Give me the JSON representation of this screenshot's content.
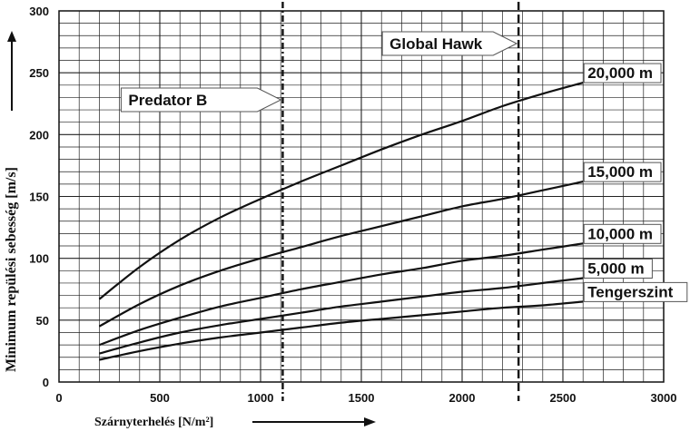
{
  "chart_data": {
    "type": "line",
    "xlabel": "Szárnyterhelés [N/m²]",
    "ylabel": "Minimum repülési sebesség [m/s]",
    "xlim": [
      0,
      3000
    ],
    "ylim": [
      0,
      300
    ],
    "x_ticks": [
      "0",
      "500",
      "1000",
      "1500",
      "2000",
      "2500",
      "3000"
    ],
    "y_ticks": [
      "0",
      "50",
      "100",
      "150",
      "200",
      "250",
      "300"
    ],
    "grid": true,
    "series": [
      {
        "name": "20,000 m",
        "points": [
          [
            200,
            67
          ],
          [
            400,
            93
          ],
          [
            600,
            115
          ],
          [
            800,
            133
          ],
          [
            1000,
            148
          ],
          [
            1200,
            162
          ],
          [
            1400,
            175
          ],
          [
            1600,
            188
          ],
          [
            1800,
            200
          ],
          [
            2000,
            211
          ],
          [
            2200,
            223
          ],
          [
            2400,
            233
          ],
          [
            2600,
            242
          ]
        ]
      },
      {
        "name": "15,000 m",
        "points": [
          [
            200,
            45
          ],
          [
            400,
            63
          ],
          [
            600,
            78
          ],
          [
            800,
            90
          ],
          [
            1000,
            100
          ],
          [
            1200,
            109
          ],
          [
            1400,
            118
          ],
          [
            1600,
            126
          ],
          [
            1800,
            134
          ],
          [
            2000,
            142
          ],
          [
            2200,
            148
          ],
          [
            2400,
            155
          ],
          [
            2600,
            162
          ]
        ]
      },
      {
        "name": "10,000 m",
        "points": [
          [
            200,
            30
          ],
          [
            400,
            42
          ],
          [
            600,
            52
          ],
          [
            800,
            61
          ],
          [
            1000,
            68
          ],
          [
            1200,
            75
          ],
          [
            1400,
            81
          ],
          [
            1600,
            87
          ],
          [
            1800,
            92
          ],
          [
            2000,
            98
          ],
          [
            2200,
            102
          ],
          [
            2400,
            107
          ],
          [
            2600,
            112
          ]
        ]
      },
      {
        "name": "5,000 m",
        "points": [
          [
            200,
            23
          ],
          [
            400,
            32
          ],
          [
            600,
            40
          ],
          [
            800,
            46
          ],
          [
            1000,
            51
          ],
          [
            1200,
            56
          ],
          [
            1400,
            61
          ],
          [
            1600,
            65
          ],
          [
            1800,
            69
          ],
          [
            2000,
            73
          ],
          [
            2200,
            76
          ],
          [
            2400,
            80
          ],
          [
            2600,
            84
          ]
        ]
      },
      {
        "name": "Tengerszint",
        "points": [
          [
            200,
            18
          ],
          [
            400,
            25
          ],
          [
            600,
            31
          ],
          [
            800,
            36
          ],
          [
            1000,
            40
          ],
          [
            1200,
            44
          ],
          [
            1400,
            48
          ],
          [
            1600,
            51
          ],
          [
            1800,
            54
          ],
          [
            2000,
            57
          ],
          [
            2200,
            60
          ],
          [
            2400,
            62
          ],
          [
            2600,
            65
          ]
        ]
      }
    ],
    "vertical_markers": [
      {
        "label": "Predator B",
        "x": 1110,
        "style": "dash-dot"
      },
      {
        "label": "Global Hawk",
        "x": 2280,
        "style": "dashed"
      }
    ]
  }
}
